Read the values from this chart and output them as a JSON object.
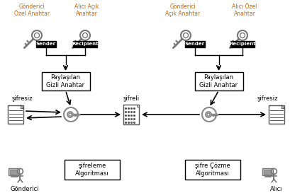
{
  "bg_color": "#ffffff",
  "orange_color": "#cc6600",
  "label_color": "#000000",
  "gray_color": "#888888",
  "left_top_labels": [
    "Gönderici\nÖzel Anahtar",
    "Alıcı Açık\nAnahtar"
  ],
  "right_top_labels": [
    "Gönderici\nAçık Anahtar",
    "Alıcı Özel\nAnahtar"
  ],
  "shared_key_label": "Paylaşılan\nGizli Anahtar",
  "sifreleme_label": "şifreleme\nAlgoritması",
  "cozme_label": "şifre Çözme\nAlgoritması",
  "sifresiz_left": "şifresiz",
  "sifreli": "şifreli",
  "sifresiz_right": "şifresiz",
  "gonderici_bottom": "Gönderici",
  "alici_bottom": "Alıcı",
  "sender_label": "Sender",
  "recipient_label": "Recipient",
  "figsize": [
    4.09,
    2.73
  ],
  "dpi": 100
}
